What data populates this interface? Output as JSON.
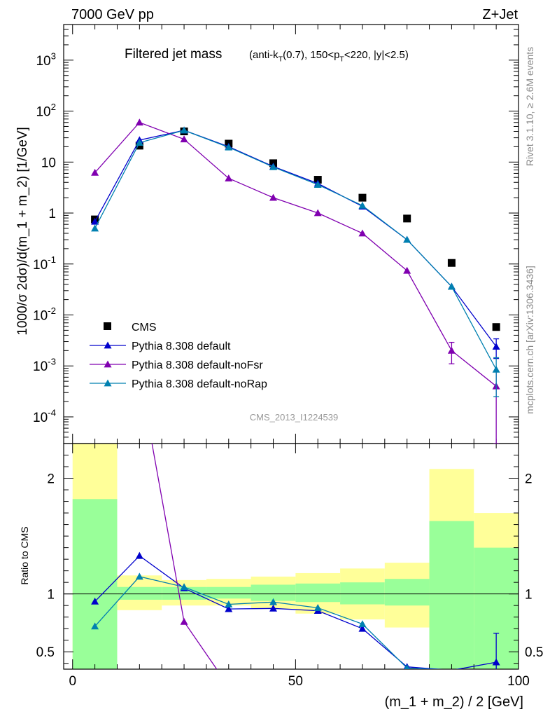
{
  "header": {
    "energy_label": "7000 GeV pp",
    "process_label": "Z+Jet",
    "analysis_id": "CMS_2013_I1224539",
    "side_rivet": "Rivet 3.1.10, ≥ 2.6M events",
    "side_mcplots": "mcplots.cern.ch [arXiv:1306.3436]"
  },
  "colors": {
    "data": "#000000",
    "default": "#0000cc",
    "noFsr": "#8000b0",
    "noRap": "#0080b0",
    "band_inner": "#99ff99",
    "band_outer": "#ffff99"
  },
  "chart_data": [
    {
      "type": "line",
      "panel": "main",
      "title_main": "Filtered jet mass",
      "title_sub": "(anti-k_T(0.7), 150<p_T<220, |y|<2.5)",
      "ylabel": "1000/σ 2dσ)/d(m_1 + m_2) [1/GeV]",
      "yscale": "log",
      "ylim": [
        3e-05,
        5000
      ],
      "xlim": [
        -2,
        100
      ],
      "ytick_labels": [
        "10^3",
        "10^2",
        "10",
        "1",
        "10^-1",
        "10^-2",
        "10^-3",
        "10^-4"
      ],
      "legend_placement": "lower-left",
      "x": [
        5,
        15,
        25,
        35,
        45,
        55,
        65,
        75,
        85,
        95
      ],
      "series": [
        {
          "name": "CMS",
          "marker": "square",
          "values": [
            0.75,
            21,
            40,
            23,
            9.5,
            4.5,
            2.0,
            0.78,
            0.105,
            0.0058
          ]
        },
        {
          "name": "Pythia 8.308 default",
          "marker": "triangle",
          "values": [
            0.68,
            27,
            42,
            20,
            8.2,
            3.8,
            1.35,
            0.3,
            0.036,
            0.0024
          ],
          "errors": [
            0,
            0,
            0,
            0,
            0,
            0,
            0,
            0,
            0,
            0.001
          ]
        },
        {
          "name": "Pythia 8.308 default-noFsr",
          "marker": "triangle",
          "values": [
            6.2,
            60,
            28,
            4.8,
            2.0,
            1.0,
            0.4,
            0.074,
            0.002,
            0.0004
          ],
          "errors": [
            0,
            0,
            0,
            0,
            0,
            0,
            0,
            0,
            0.0009,
            0.00037
          ]
        },
        {
          "name": "Pythia 8.308 default-noRap",
          "marker": "triangle",
          "values": [
            0.5,
            24,
            42,
            19.5,
            8.0,
            3.6,
            1.4,
            0.3,
            0.036,
            0.00085
          ],
          "errors": [
            0,
            0,
            0,
            0,
            0,
            0,
            0,
            0,
            0,
            0.0006
          ]
        }
      ]
    },
    {
      "type": "line",
      "panel": "ratio",
      "ylabel": "Ratio to CMS",
      "xlabel": "(m_1 + m_2) / 2 [GeV]",
      "xlim": [
        -2,
        100
      ],
      "ylim": [
        0.35,
        2.3
      ],
      "ytick_labels": [
        "0.5",
        "1",
        "2"
      ],
      "xtick_labels": [
        "0",
        "50",
        "100"
      ],
      "bands": {
        "edges": [
          0,
          10,
          20,
          30,
          40,
          50,
          60,
          70,
          80,
          90,
          100
        ],
        "inner_low": [
          0.2,
          0.95,
          0.95,
          0.96,
          0.94,
          0.93,
          0.91,
          0.9,
          0.2,
          0.3
        ],
        "inner_high": [
          1.82,
          1.06,
          1.06,
          1.06,
          1.08,
          1.09,
          1.1,
          1.13,
          1.63,
          1.4
        ],
        "outer_low": [
          0.2,
          0.86,
          0.9,
          0.9,
          0.87,
          0.83,
          0.78,
          0.71,
          0.39,
          0.73
        ],
        "outer_high": [
          2.3,
          1.16,
          1.12,
          1.13,
          1.15,
          1.18,
          1.22,
          1.27,
          2.08,
          1.7
        ]
      },
      "x": [
        5,
        15,
        25,
        35,
        45,
        55,
        65,
        75,
        85,
        95
      ],
      "series": [
        {
          "name": "Pythia 8.308 default",
          "values": [
            0.935,
            1.33,
            1.05,
            0.87,
            0.875,
            0.855,
            0.7,
            0.37,
            0.34,
            0.41
          ],
          "errors": [
            0,
            0,
            0,
            0,
            0,
            0,
            0,
            0,
            0,
            0.25
          ]
        },
        {
          "name": "Pythia 8.308 default-noFsr",
          "values": [
            8.0,
            2.9,
            0.76,
            0.2,
            0.2,
            0.2,
            0.2,
            0.1,
            0.02,
            0.07
          ]
        },
        {
          "name": "Pythia 8.308 default-noRap",
          "values": [
            0.72,
            1.15,
            1.06,
            0.91,
            0.93,
            0.88,
            0.74,
            0.36,
            0.34,
            0.15
          ]
        }
      ]
    }
  ]
}
